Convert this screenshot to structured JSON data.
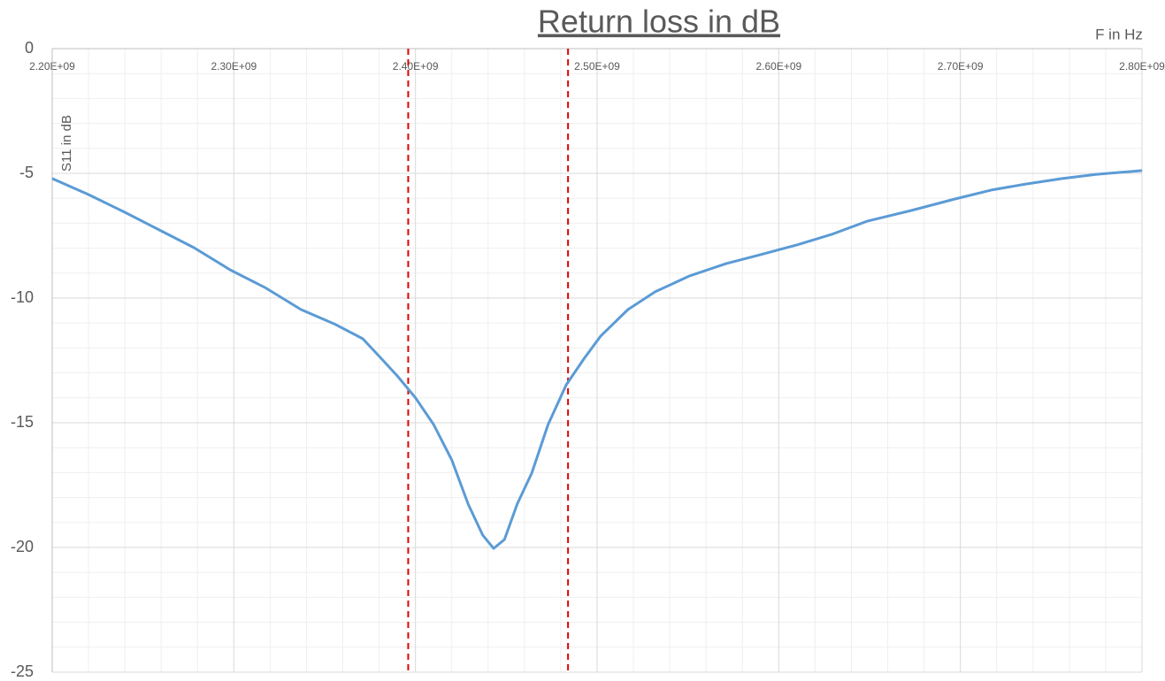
{
  "chart_data": {
    "type": "line",
    "title": "Return loss in dB",
    "x_label": "F in  Hz",
    "y_label": "S11 in dB",
    "x": [
      2200000000,
      2220000000,
      2240000000,
      2259000000,
      2278000000,
      2298000000,
      2317000000,
      2337000000,
      2356000000,
      2371000000,
      2381000000,
      2390000000,
      2400000000,
      2410000000,
      2420000000,
      2429000000,
      2437000000,
      2443000000,
      2449000000,
      2456000000,
      2464000000,
      2473000000,
      2483000000,
      2493000000,
      2502000000,
      2517000000,
      2532000000,
      2551000000,
      2571000000,
      2590000000,
      2610000000,
      2629000000,
      2649000000,
      2673000000,
      2697000000,
      2717000000,
      2736000000,
      2756000000,
      2775000000,
      2800000000
    ],
    "series": [
      {
        "name": "S11",
        "color": "#5b9bd5",
        "values": [
          -5.21,
          -5.85,
          -6.56,
          -7.27,
          -7.98,
          -8.87,
          -9.57,
          -10.46,
          -11.06,
          -11.63,
          -12.41,
          -13.12,
          -14.0,
          -15.07,
          -16.49,
          -18.26,
          -19.5,
          -20.04,
          -19.68,
          -18.26,
          -17.02,
          -15.07,
          -13.48,
          -12.41,
          -11.52,
          -10.46,
          -9.75,
          -9.11,
          -8.62,
          -8.26,
          -7.87,
          -7.45,
          -6.91,
          -6.49,
          -6.03,
          -5.67,
          -5.43,
          -5.21,
          -5.04,
          -4.89
        ]
      }
    ],
    "markers": [
      2396000000,
      2484000000
    ],
    "marker_color": "#e00000",
    "xlim": [
      2200000000,
      2800000000
    ],
    "xticks": [
      {
        "value": 2200000000,
        "label": "2.20E+09"
      },
      {
        "value": 2300000000,
        "label": "2.30E+09"
      },
      {
        "value": 2400000000,
        "label": "2.40E+09"
      },
      {
        "value": 2500000000,
        "label": "2.50E+09"
      },
      {
        "value": 2600000000,
        "label": "2.60E+09"
      },
      {
        "value": 2700000000,
        "label": "2.70E+09"
      },
      {
        "value": 2800000000,
        "label": "2.80E+09"
      }
    ],
    "ylim": [
      -25,
      0
    ],
    "yticks": [
      0,
      -5,
      -10,
      -15,
      -20,
      -25
    ],
    "grid": true,
    "minor_grid": true
  }
}
